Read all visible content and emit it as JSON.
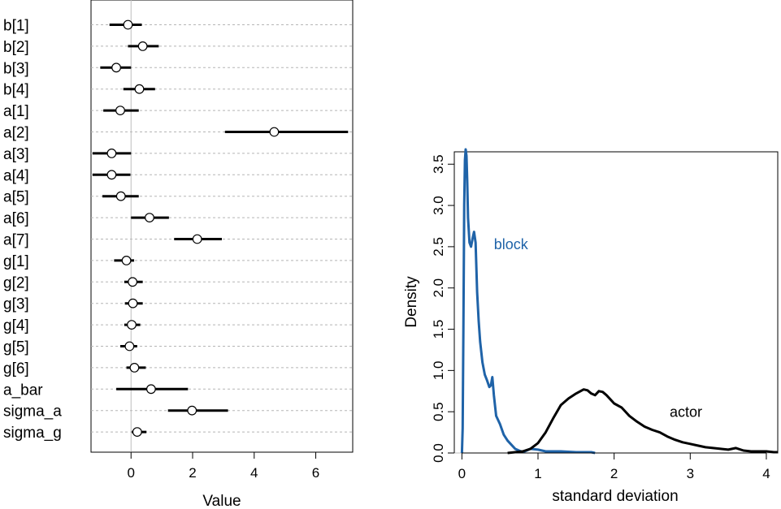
{
  "chart_data": [
    {
      "type": "forest",
      "xlabel": "Value",
      "xlim": [
        -1.3,
        7.2
      ],
      "xticks": [
        0,
        2,
        4,
        6
      ],
      "xtick_labels": [
        "0",
        "2",
        "4",
        "6"
      ],
      "zero_line": 0,
      "params": [
        {
          "name": "b[1]",
          "mean": -0.1,
          "lo": -0.7,
          "hi": 0.35
        },
        {
          "name": "b[2]",
          "mean": 0.38,
          "lo": -0.1,
          "hi": 0.9
        },
        {
          "name": "b[3]",
          "mean": -0.48,
          "lo": -1.0,
          "hi": 0.0
        },
        {
          "name": "b[4]",
          "mean": 0.27,
          "lo": -0.25,
          "hi": 0.78
        },
        {
          "name": "a[1]",
          "mean": -0.35,
          "lo": -0.9,
          "hi": 0.25
        },
        {
          "name": "a[2]",
          "mean": 4.65,
          "lo": 3.05,
          "hi": 7.05
        },
        {
          "name": "a[3]",
          "mean": -0.63,
          "lo": -1.25,
          "hi": 0.0
        },
        {
          "name": "a[4]",
          "mean": -0.63,
          "lo": -1.25,
          "hi": -0.02
        },
        {
          "name": "a[5]",
          "mean": -0.33,
          "lo": -0.93,
          "hi": 0.25
        },
        {
          "name": "a[6]",
          "mean": 0.6,
          "lo": 0.0,
          "hi": 1.23
        },
        {
          "name": "a[7]",
          "mean": 2.15,
          "lo": 1.4,
          "hi": 2.95
        },
        {
          "name": "g[1]",
          "mean": -0.15,
          "lo": -0.55,
          "hi": 0.1
        },
        {
          "name": "g[2]",
          "mean": 0.05,
          "lo": -0.22,
          "hi": 0.38
        },
        {
          "name": "g[3]",
          "mean": 0.06,
          "lo": -0.2,
          "hi": 0.38
        },
        {
          "name": "g[4]",
          "mean": 0.02,
          "lo": -0.22,
          "hi": 0.3
        },
        {
          "name": "g[5]",
          "mean": -0.05,
          "lo": -0.35,
          "hi": 0.2
        },
        {
          "name": "g[6]",
          "mean": 0.11,
          "lo": -0.15,
          "hi": 0.48
        },
        {
          "name": "a_bar",
          "mean": 0.65,
          "lo": -0.48,
          "hi": 1.85
        },
        {
          "name": "sigma_a",
          "mean": 1.98,
          "lo": 1.2,
          "hi": 3.15
        },
        {
          "name": "sigma_g",
          "mean": 0.2,
          "lo": 0.02,
          "hi": 0.5
        }
      ]
    },
    {
      "type": "line",
      "xlabel": "standard deviation",
      "ylabel": "Density",
      "xlim": [
        -0.1,
        4.15
      ],
      "ylim": [
        0,
        3.65
      ],
      "xticks": [
        0,
        1,
        2,
        3,
        4
      ],
      "xtick_labels": [
        "0",
        "1",
        "2",
        "3",
        "4"
      ],
      "yticks": [
        0,
        0.5,
        1,
        1.5,
        2,
        2.5,
        3,
        3.5
      ],
      "ytick_labels": [
        "0.0",
        "0.5",
        "1.0",
        "1.5",
        "2.0",
        "2.5",
        "3.0",
        "3.5"
      ],
      "series": [
        {
          "name": "block",
          "color": "#1f63a8",
          "label": "block",
          "label_at": [
            0.42,
            2.47
          ],
          "x": [
            0.0,
            0.01,
            0.02,
            0.03,
            0.04,
            0.05,
            0.06,
            0.07,
            0.08,
            0.1,
            0.12,
            0.14,
            0.16,
            0.18,
            0.2,
            0.22,
            0.24,
            0.27,
            0.3,
            0.33,
            0.36,
            0.38,
            0.4,
            0.42,
            0.45,
            0.5,
            0.55,
            0.6,
            0.65,
            0.7,
            0.75,
            0.8,
            0.85,
            0.9,
            1.0,
            1.1,
            1.3,
            1.5,
            1.7,
            1.75
          ],
          "y": [
            0.0,
            0.3,
            1.5,
            3.0,
            3.55,
            3.68,
            3.6,
            3.3,
            2.85,
            2.55,
            2.5,
            2.6,
            2.68,
            2.55,
            1.95,
            1.6,
            1.35,
            1.1,
            0.95,
            0.88,
            0.8,
            0.82,
            0.92,
            0.7,
            0.45,
            0.35,
            0.22,
            0.15,
            0.1,
            0.05,
            0.03,
            0.01,
            0.03,
            0.05,
            0.04,
            0.02,
            0.02,
            0.01,
            0.01,
            0.0
          ]
        },
        {
          "name": "actor",
          "color": "#000000",
          "label": "actor",
          "label_at": [
            2.73,
            0.44
          ],
          "x": [
            0.6,
            0.7,
            0.8,
            0.9,
            1.0,
            1.1,
            1.2,
            1.3,
            1.4,
            1.5,
            1.6,
            1.65,
            1.7,
            1.75,
            1.8,
            1.85,
            1.9,
            2.0,
            2.1,
            2.2,
            2.3,
            2.4,
            2.5,
            2.6,
            2.7,
            2.8,
            2.9,
            3.0,
            3.1,
            3.2,
            3.3,
            3.4,
            3.5,
            3.6,
            3.7,
            3.8,
            3.9,
            4.0,
            4.1,
            4.15
          ],
          "y": [
            0.0,
            0.01,
            0.02,
            0.05,
            0.12,
            0.25,
            0.42,
            0.58,
            0.66,
            0.72,
            0.77,
            0.76,
            0.72,
            0.7,
            0.75,
            0.74,
            0.7,
            0.6,
            0.55,
            0.45,
            0.38,
            0.32,
            0.28,
            0.25,
            0.2,
            0.16,
            0.13,
            0.11,
            0.09,
            0.07,
            0.06,
            0.05,
            0.04,
            0.06,
            0.03,
            0.02,
            0.02,
            0.02,
            0.01,
            0.01
          ]
        }
      ]
    }
  ]
}
